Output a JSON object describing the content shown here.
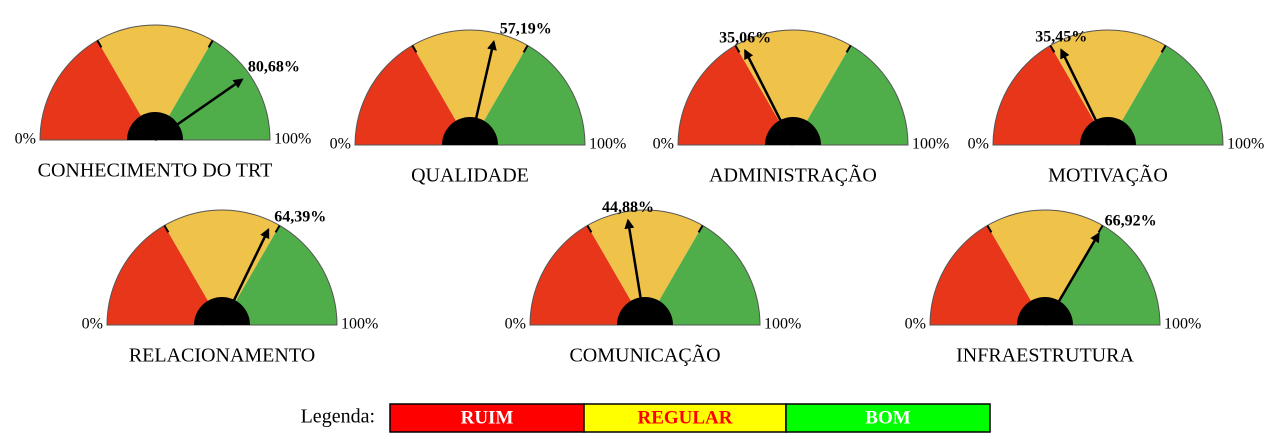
{
  "chart_data": [
    {
      "type": "gauge",
      "title": "CONHECIMENTO DO TRT",
      "value": 80.68,
      "value_labels": "80,68%",
      "xlim": [
        0,
        100
      ],
      "xticks": [
        {
          "value": 0,
          "label": "0%"
        },
        {
          "value": 100,
          "label": "100%"
        }
      ]
    },
    {
      "type": "gauge",
      "title": "QUALIDADE",
      "value": 57.19,
      "value_labels": "57,19%",
      "xlim": [
        0,
        100
      ],
      "xticks": [
        {
          "value": 0,
          "label": "0%"
        },
        {
          "value": 100,
          "label": "100%"
        }
      ]
    },
    {
      "type": "gauge",
      "title": "ADMINISTRAÇÃO",
      "value": 35.06,
      "value_labels": "35,06%",
      "xlim": [
        0,
        100
      ],
      "xticks": [
        {
          "value": 0,
          "label": "0%"
        },
        {
          "value": 100,
          "label": "100%"
        }
      ]
    },
    {
      "type": "gauge",
      "title": "MOTIVAÇÃO",
      "value": 35.45,
      "value_labels": "35,45%",
      "xlim": [
        0,
        100
      ],
      "xticks": [
        {
          "value": 0,
          "label": "0%"
        },
        {
          "value": 100,
          "label": "100%"
        }
      ]
    },
    {
      "type": "gauge",
      "title": "RELACIONAMENTO",
      "value": 64.39,
      "value_labels": "64,39%",
      "xlim": [
        0,
        100
      ],
      "xticks": [
        {
          "value": 0,
          "label": "0%"
        },
        {
          "value": 100,
          "label": "100%"
        }
      ]
    },
    {
      "type": "gauge",
      "title": "COMUNICAÇÃO",
      "value": 44.88,
      "value_labels": "44,88%",
      "xlim": [
        0,
        100
      ],
      "xticks": [
        {
          "value": 0,
          "label": "0%"
        },
        {
          "value": 100,
          "label": "100%"
        }
      ]
    },
    {
      "type": "gauge",
      "title": "INFRAESTRUTURA",
      "value": 66.92,
      "value_labels": "66,92%",
      "xlim": [
        0,
        100
      ],
      "xticks": [
        {
          "value": 0,
          "label": "0%"
        },
        {
          "value": 100,
          "label": "100%"
        }
      ]
    }
  ],
  "legend": {
    "title": "Legenda:",
    "items": [
      {
        "name": "RUIM",
        "color": "#ff0000",
        "text_color": "#ffffff",
        "gauge_color": "#e8361a",
        "range": [
          0,
          33.3
        ]
      },
      {
        "name": "REGULAR",
        "color": "#ffff00",
        "text_color": "#ff0000",
        "gauge_color": "#efc24a",
        "range": [
          33.3,
          66.7
        ]
      },
      {
        "name": "BOM",
        "color": "#00ff00",
        "text_color": "#ffffff",
        "gauge_color": "#4fae4a",
        "range": [
          66.7,
          100
        ]
      }
    ]
  }
}
